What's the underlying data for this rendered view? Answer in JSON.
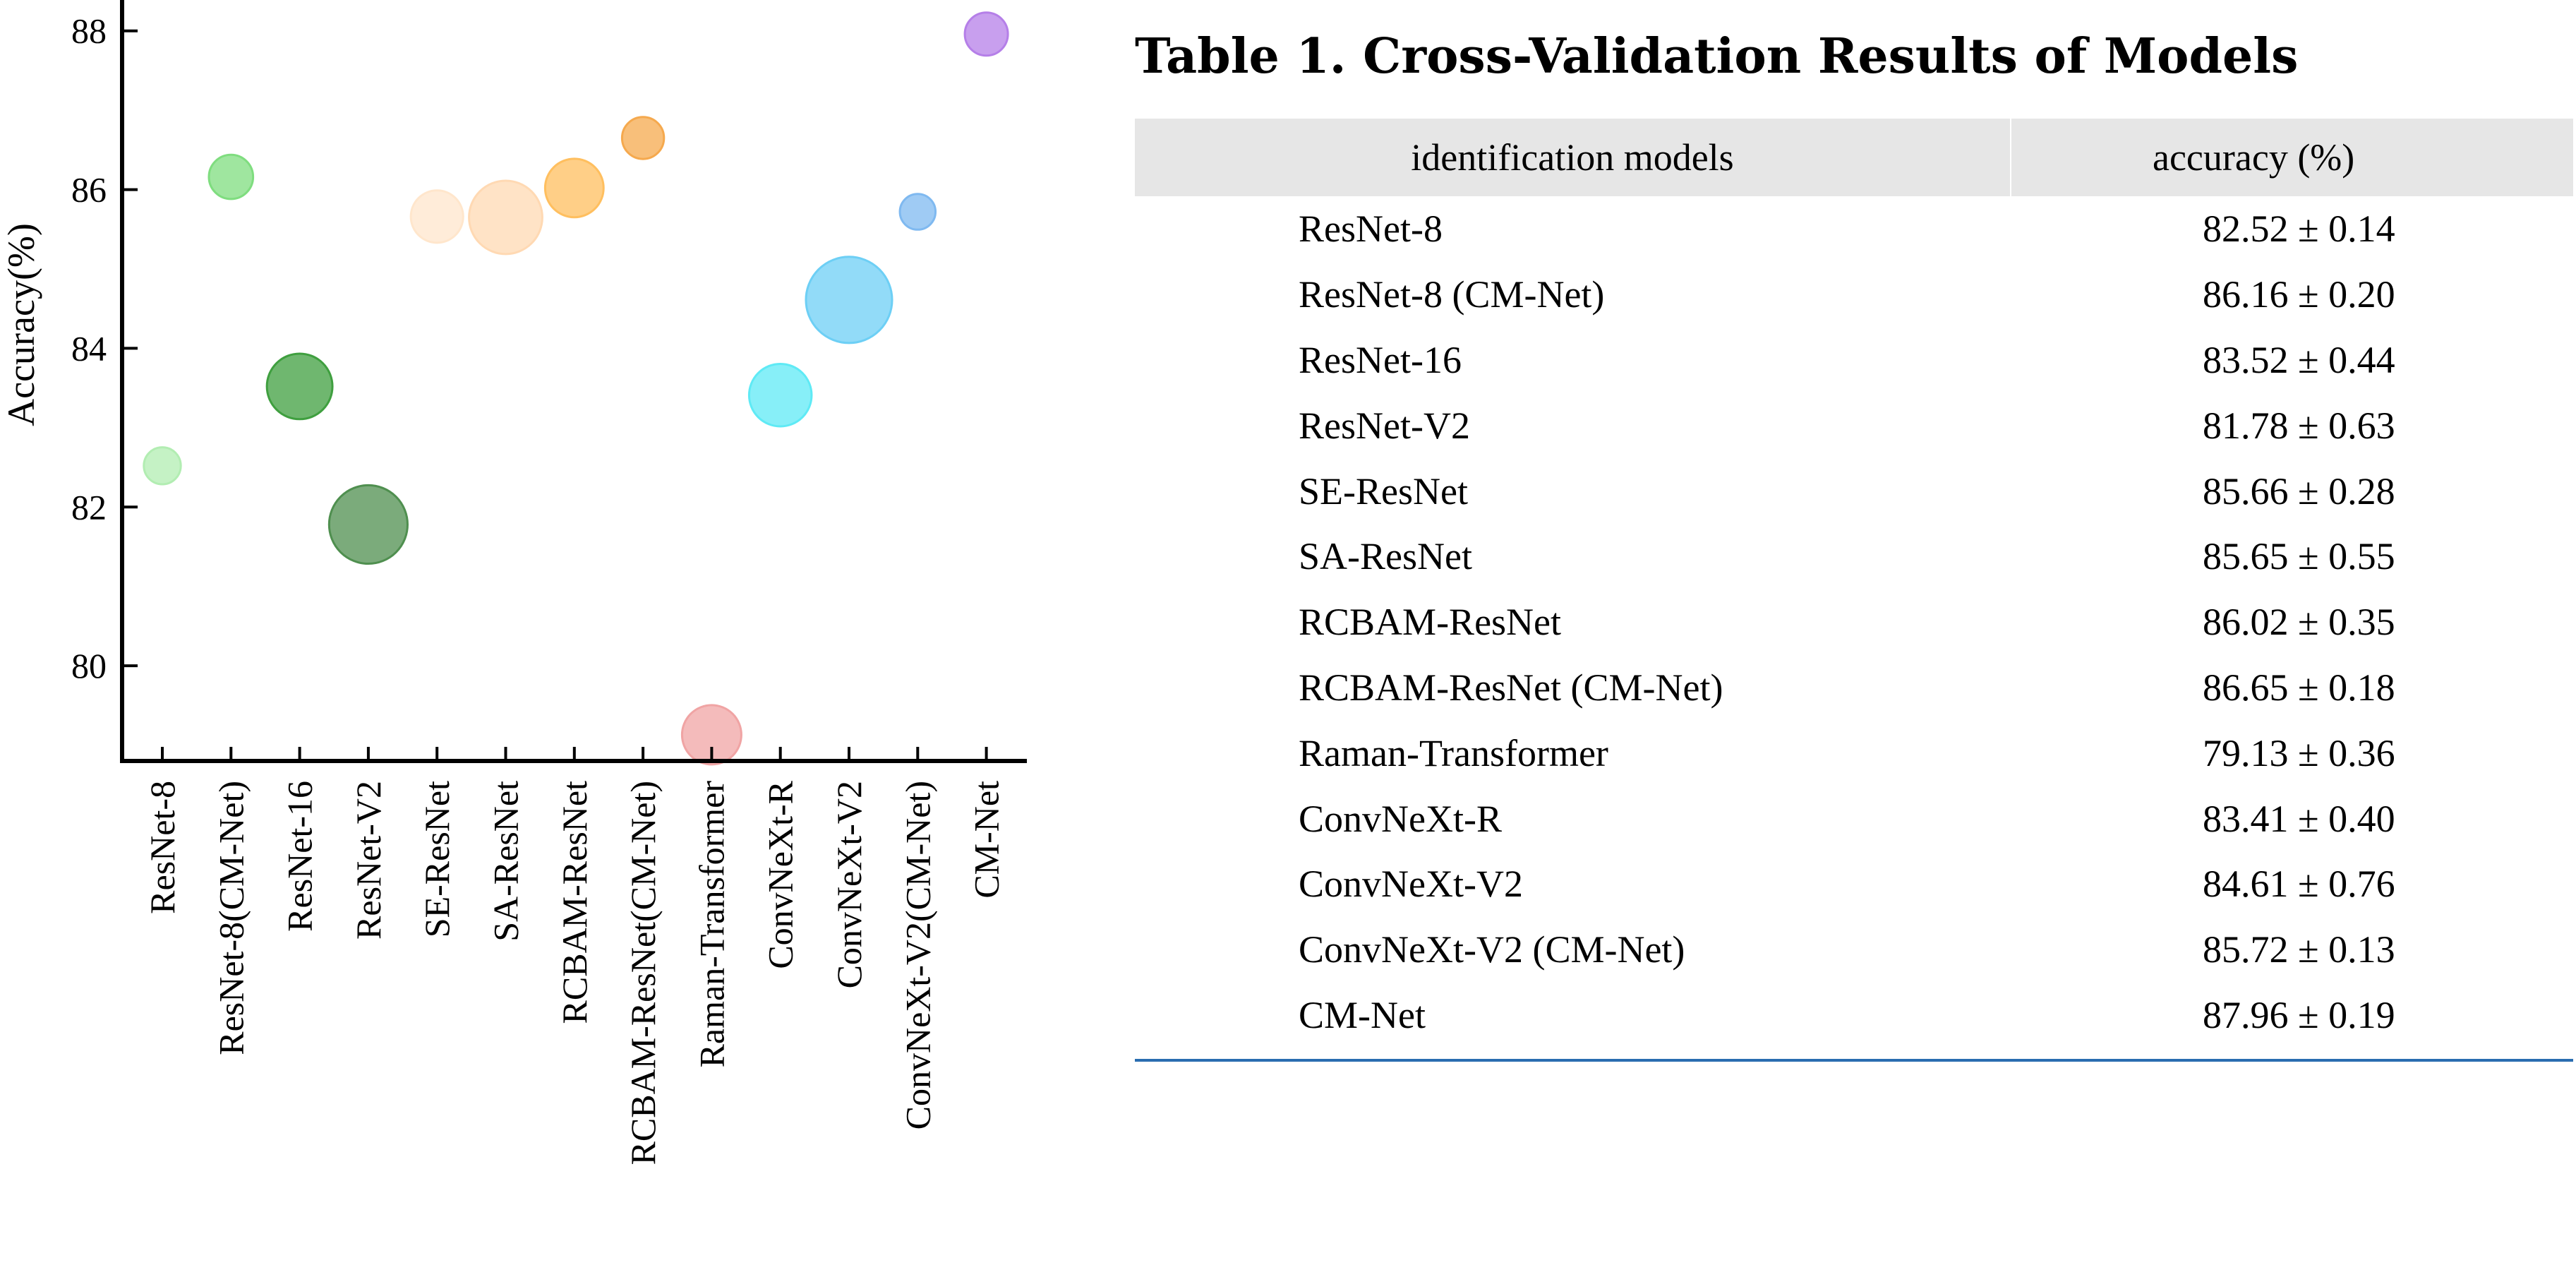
{
  "chart_data": {
    "type": "scatter",
    "subtype": "bubble",
    "ylabel": "Accuracy(%)",
    "xlabel": "",
    "ylim": [
      78.8,
      88.3
    ],
    "yticks": [
      80,
      82,
      84,
      86,
      88
    ],
    "grid": false,
    "legend": "none",
    "categories": [
      "ResNet-8",
      "ResNet-8(CM-Net)",
      "ResNet-16",
      "ResNet-V2",
      "SE-ResNet",
      "SA-ResNet",
      "RCBAM-ResNet",
      "RCBAM-ResNet(CM-Net)",
      "Raman-Transformer",
      "ConvNeXt-R",
      "ConvNeXt-V2",
      "ConvNeXt-V2(CM-Net)",
      "CM-Net"
    ],
    "values": [
      82.52,
      86.16,
      83.52,
      81.78,
      85.66,
      85.65,
      86.02,
      86.65,
      79.13,
      83.41,
      84.61,
      85.72,
      87.96
    ],
    "bubble_size": [
      0.14,
      0.2,
      0.44,
      0.63,
      0.28,
      0.55,
      0.35,
      0.18,
      0.36,
      0.4,
      0.76,
      0.13,
      0.19
    ],
    "colors": [
      "#b2edb2",
      "#7fdd7f",
      "#3f9f3f",
      "#4f8f4f",
      "#ffe6cc",
      "#ffd9b3",
      "#ffbf5f",
      "#f5a94e",
      "#f0a4a4",
      "#5feaf5",
      "#6dcff5",
      "#7fb9f0",
      "#b57fe8"
    ]
  },
  "table": {
    "title": "Table 1. Cross-Validation Results of Models",
    "headers": [
      "identification models",
      "accuracy (%)"
    ],
    "rows": [
      {
        "model": "ResNet-8",
        "accuracy": "82.52 ± 0.14"
      },
      {
        "model": "ResNet-8 (CM-Net)",
        "accuracy": "86.16 ± 0.20"
      },
      {
        "model": "ResNet-16",
        "accuracy": "83.52 ± 0.44"
      },
      {
        "model": "ResNet-V2",
        "accuracy": "81.78 ± 0.63"
      },
      {
        "model": "SE-ResNet",
        "accuracy": "85.66 ± 0.28"
      },
      {
        "model": "SA-ResNet",
        "accuracy": "85.65 ± 0.55"
      },
      {
        "model": "RCBAM-ResNet",
        "accuracy": "86.02 ± 0.35"
      },
      {
        "model": "RCBAM-ResNet (CM-Net)",
        "accuracy": "86.65 ± 0.18"
      },
      {
        "model": "Raman-Transformer",
        "accuracy": "79.13 ± 0.36"
      },
      {
        "model": "ConvNeXt-R",
        "accuracy": "83.41 ± 0.40"
      },
      {
        "model": "ConvNeXt-V2",
        "accuracy": "84.61 ± 0.76"
      },
      {
        "model": "ConvNeXt-V2 (CM-Net)",
        "accuracy": "85.72 ± 0.13"
      },
      {
        "model": "CM-Net",
        "accuracy": "87.96 ± 0.19"
      }
    ]
  }
}
